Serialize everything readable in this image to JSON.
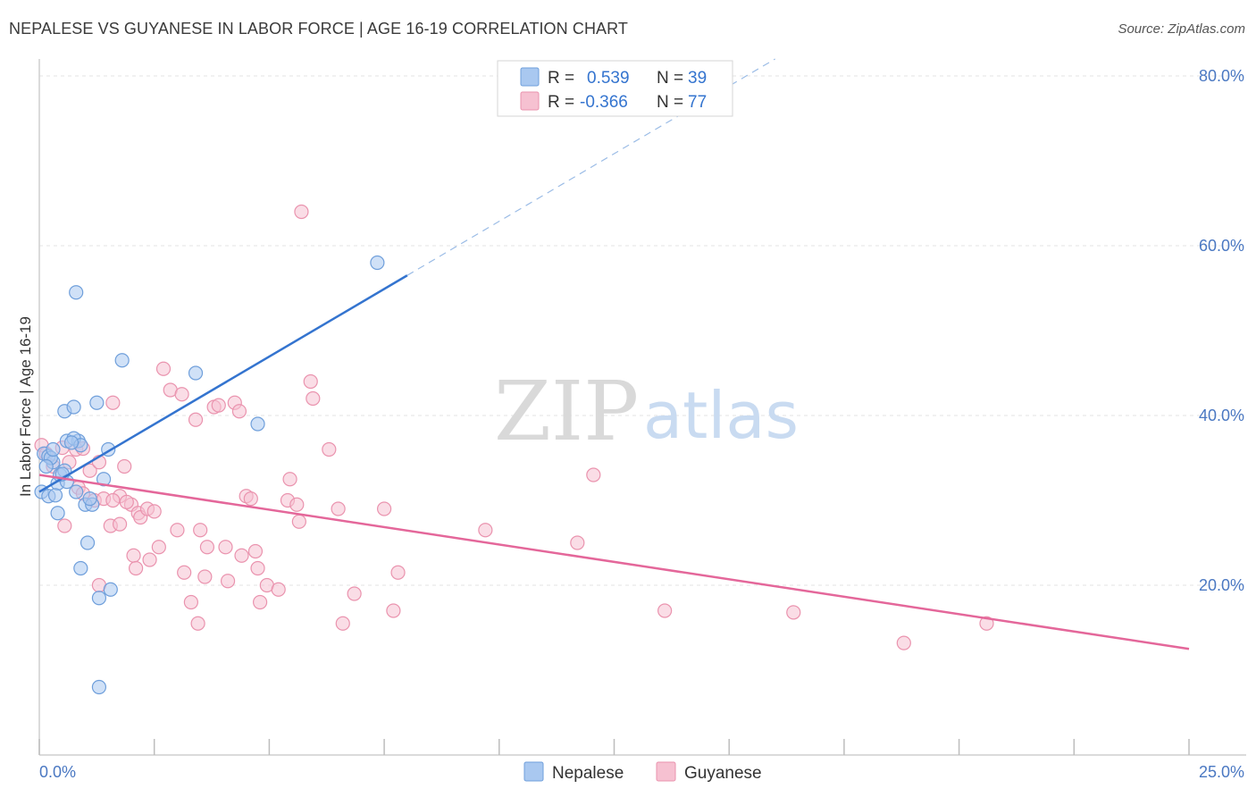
{
  "title": "NEPALESE VS GUYANESE IN LABOR FORCE | AGE 16-19 CORRELATION CHART",
  "source": "Source: ZipAtlas.com",
  "watermark": {
    "zip": "ZIP",
    "atlas": "atlas"
  },
  "legend": {
    "rows": [
      {
        "r_label": "R =",
        "r_value": "0.539",
        "n_label": "N =",
        "n_value": "39"
      },
      {
        "r_label": "R =",
        "r_value": "-0.366",
        "n_label": "N =",
        "n_value": "77"
      }
    ]
  },
  "colors": {
    "nepalese_fill": "#a9c8f0",
    "nepalese_stroke": "#6f9fdb",
    "nepalese_line": "#3474cf",
    "guyanese_fill": "#f6c1d1",
    "guyanese_stroke": "#ea93ae",
    "guyanese_line": "#e4679a",
    "axis_text": "#4a78c2",
    "grid": "#e3e3e3"
  },
  "chart_data": {
    "type": "scatter",
    "title": "NEPALESE VS GUYANESE IN LABOR FORCE | AGE 16-19 CORRELATION CHART",
    "xlabel": "",
    "ylabel": "In Labor Force | Age 16-19",
    "xlim": [
      0,
      25
    ],
    "ylim": [
      0,
      82
    ],
    "x_tick_labels": [
      "0.0%",
      "25.0%"
    ],
    "y_ticks": [
      20,
      40,
      60,
      80
    ],
    "y_tick_labels": [
      "20.0%",
      "40.0%",
      "60.0%",
      "80.0%"
    ],
    "grid": true,
    "legend_position": "top-center",
    "series": [
      {
        "name": "Nepalese",
        "r": 0.539,
        "n": 39,
        "trend": {
          "x": [
            0,
            8
          ],
          "y": [
            31,
            56.5
          ],
          "dashed_to_x": 16
        },
        "points": [
          [
            0.1,
            35.5
          ],
          [
            0.2,
            35.2
          ],
          [
            0.3,
            34.5
          ],
          [
            0.4,
            32.0
          ],
          [
            0.05,
            31.0
          ],
          [
            0.2,
            30.5
          ],
          [
            0.35,
            30.6
          ],
          [
            0.4,
            28.5
          ],
          [
            0.45,
            33.0
          ],
          [
            0.55,
            33.5
          ],
          [
            0.6,
            32.2
          ],
          [
            0.55,
            40.5
          ],
          [
            0.75,
            41.0
          ],
          [
            0.6,
            37.0
          ],
          [
            0.85,
            37.0
          ],
          [
            0.75,
            37.3
          ],
          [
            0.9,
            36.5
          ],
          [
            0.8,
            31.0
          ],
          [
            1.0,
            29.5
          ],
          [
            1.15,
            29.5
          ],
          [
            1.1,
            30.2
          ],
          [
            1.4,
            32.5
          ],
          [
            1.25,
            41.5
          ],
          [
            1.5,
            36.0
          ],
          [
            1.8,
            46.5
          ],
          [
            3.4,
            45.0
          ],
          [
            4.75,
            39.0
          ],
          [
            7.35,
            58.0
          ],
          [
            0.8,
            54.5
          ],
          [
            1.05,
            25.0
          ],
          [
            0.9,
            22.0
          ],
          [
            1.3,
            18.5
          ],
          [
            1.55,
            19.5
          ],
          [
            1.3,
            8.0
          ],
          [
            0.25,
            35.0
          ],
          [
            0.7,
            36.8
          ],
          [
            0.5,
            33.1
          ],
          [
            0.3,
            36.0
          ],
          [
            0.15,
            34.0
          ]
        ]
      },
      {
        "name": "Guyanese",
        "r": -0.366,
        "n": 77,
        "trend": {
          "x": [
            0,
            25
          ],
          "y": [
            33,
            12.5
          ]
        },
        "points": [
          [
            0.05,
            36.5
          ],
          [
            0.15,
            35.5
          ],
          [
            0.3,
            34.0
          ],
          [
            0.5,
            36.2
          ],
          [
            0.65,
            34.5
          ],
          [
            0.8,
            36.0
          ],
          [
            0.95,
            36.1
          ],
          [
            0.85,
            31.5
          ],
          [
            1.1,
            33.5
          ],
          [
            1.2,
            30.0
          ],
          [
            1.3,
            34.5
          ],
          [
            1.4,
            30.2
          ],
          [
            1.6,
            41.5
          ],
          [
            1.85,
            34.0
          ],
          [
            1.75,
            30.5
          ],
          [
            2.0,
            29.5
          ],
          [
            2.15,
            28.5
          ],
          [
            2.2,
            28.0
          ],
          [
            2.35,
            29.0
          ],
          [
            1.9,
            29.8
          ],
          [
            2.5,
            28.7
          ],
          [
            2.6,
            24.5
          ],
          [
            2.05,
            23.5
          ],
          [
            2.7,
            45.5
          ],
          [
            2.85,
            43.0
          ],
          [
            3.1,
            42.5
          ],
          [
            3.0,
            26.5
          ],
          [
            3.15,
            21.5
          ],
          [
            3.4,
            39.5
          ],
          [
            3.3,
            18.0
          ],
          [
            3.45,
            15.5
          ],
          [
            3.6,
            21.0
          ],
          [
            3.65,
            24.5
          ],
          [
            3.5,
            26.5
          ],
          [
            3.8,
            41.0
          ],
          [
            3.9,
            41.2
          ],
          [
            4.05,
            24.5
          ],
          [
            4.1,
            20.5
          ],
          [
            4.25,
            41.5
          ],
          [
            4.35,
            40.5
          ],
          [
            4.5,
            30.5
          ],
          [
            4.4,
            23.5
          ],
          [
            4.7,
            24.0
          ],
          [
            4.75,
            22.0
          ],
          [
            4.8,
            18.0
          ],
          [
            4.95,
            20.0
          ],
          [
            5.2,
            19.5
          ],
          [
            5.4,
            30.0
          ],
          [
            5.45,
            32.5
          ],
          [
            5.6,
            29.5
          ],
          [
            5.65,
            27.5
          ],
          [
            5.9,
            44.0
          ],
          [
            5.95,
            42.0
          ],
          [
            5.7,
            64.0
          ],
          [
            6.3,
            36.0
          ],
          [
            6.5,
            29.0
          ],
          [
            6.6,
            15.5
          ],
          [
            6.85,
            19.0
          ],
          [
            7.5,
            29.0
          ],
          [
            7.7,
            17.0
          ],
          [
            7.8,
            21.5
          ],
          [
            9.7,
            26.5
          ],
          [
            11.7,
            25.0
          ],
          [
            12.05,
            33.0
          ],
          [
            13.6,
            17.0
          ],
          [
            16.4,
            16.8
          ],
          [
            18.8,
            13.2
          ],
          [
            20.6,
            15.5
          ],
          [
            1.3,
            20.0
          ],
          [
            1.55,
            27.0
          ],
          [
            2.4,
            23.0
          ],
          [
            2.1,
            22.0
          ],
          [
            0.95,
            30.8
          ],
          [
            1.6,
            30.0
          ],
          [
            4.6,
            30.2
          ],
          [
            1.75,
            27.2
          ],
          [
            0.55,
            27.0
          ]
        ]
      }
    ]
  }
}
